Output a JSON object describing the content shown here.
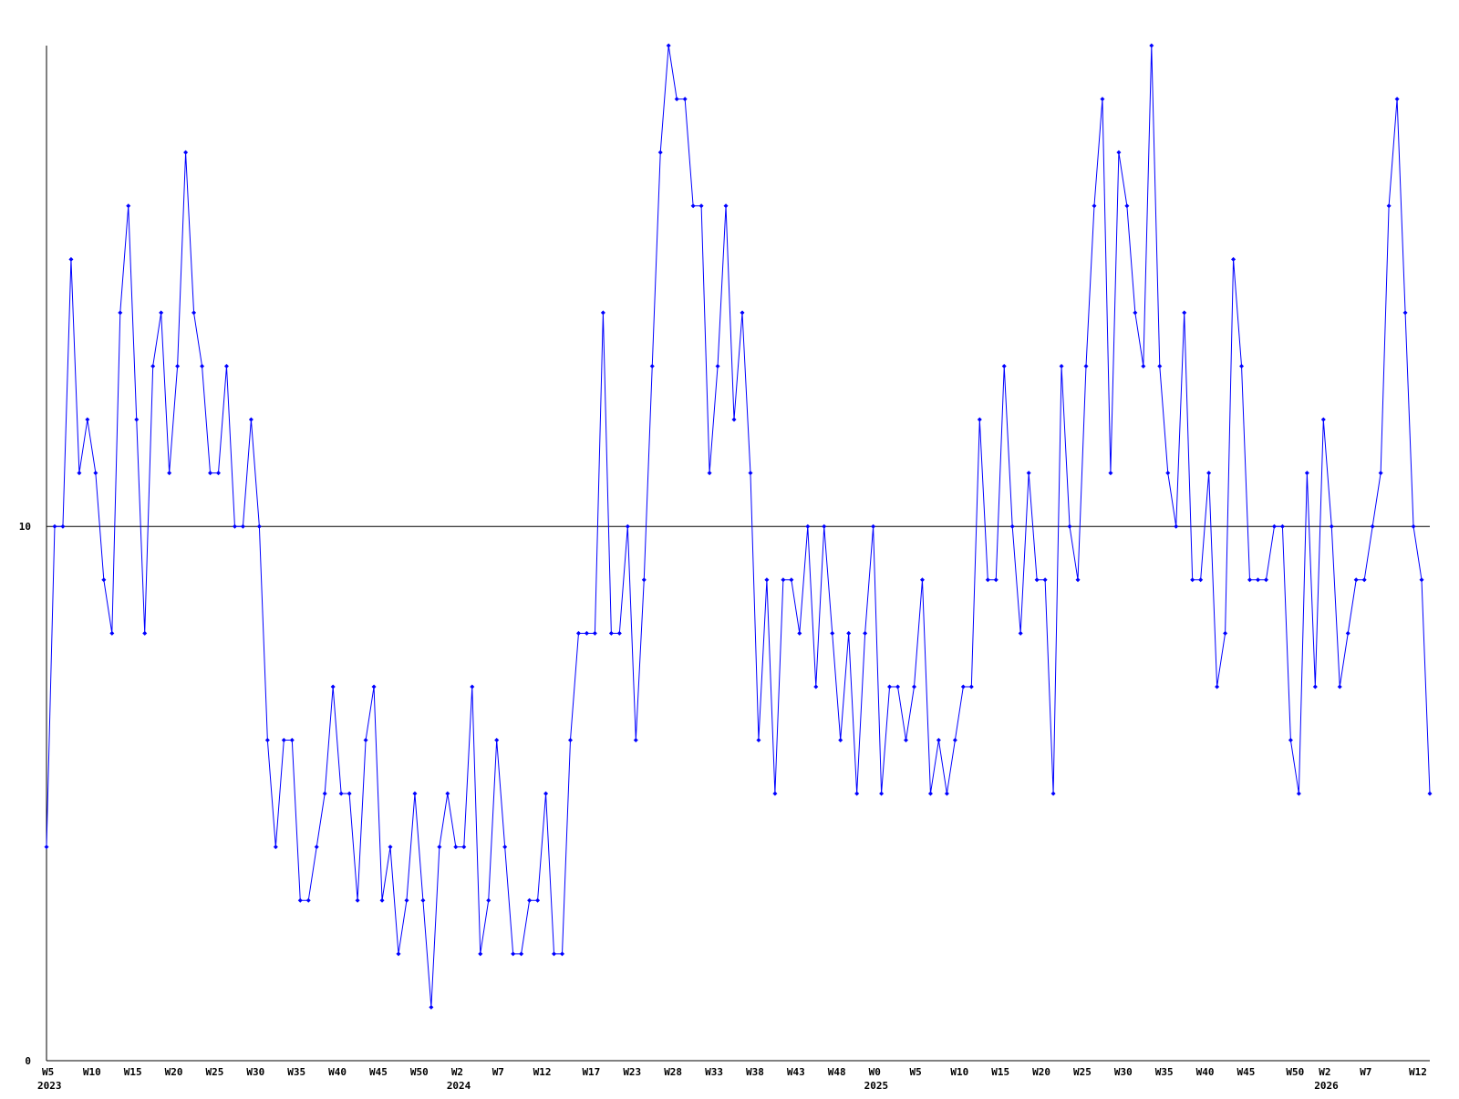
{
  "chart_data": {
    "type": "line",
    "series": [
      {
        "color": "#0000ff",
        "values": [
          4,
          10,
          10,
          15,
          11,
          12,
          11,
          9,
          8,
          14,
          16,
          12,
          8,
          13,
          14,
          11,
          13,
          17,
          14,
          13,
          11,
          11,
          13,
          10,
          10,
          12,
          10,
          6,
          4,
          6,
          6,
          3,
          3,
          4,
          5,
          7,
          5,
          5,
          3,
          6,
          7,
          3,
          4,
          2,
          3,
          5,
          3,
          1,
          4,
          5,
          4,
          4,
          7,
          2,
          3,
          6,
          4,
          2,
          2,
          3,
          3,
          5,
          2,
          2,
          6,
          8,
          8,
          8,
          14,
          8,
          8,
          10,
          6,
          9,
          13,
          17,
          19,
          18,
          18,
          16,
          16,
          11,
          13,
          16,
          12,
          14,
          11,
          6,
          9,
          5,
          9,
          9,
          8,
          10,
          7,
          10,
          8,
          6,
          8,
          5,
          8,
          10,
          5,
          7,
          7,
          6,
          7,
          9,
          5,
          6,
          5,
          6,
          7,
          7,
          12,
          9,
          9,
          13,
          10,
          8,
          11,
          9,
          9,
          5,
          13,
          10,
          9,
          13,
          16,
          18,
          11,
          17,
          16,
          14,
          13,
          19,
          13,
          11,
          10,
          14,
          9,
          9,
          11,
          7,
          8,
          15,
          13,
          9,
          9,
          9,
          10,
          10,
          6,
          5,
          11,
          7,
          12,
          10,
          7,
          8,
          9,
          9,
          10,
          11,
          16,
          18,
          14,
          10,
          9,
          5
        ]
      }
    ],
    "ylim": [
      0,
      19
    ],
    "yticks": [
      0,
      10
    ],
    "xticks": [
      {
        "value": 0,
        "label": "W5"
      },
      {
        "value": 5,
        "label": "W10"
      },
      {
        "value": 10,
        "label": "W15"
      },
      {
        "value": 15,
        "label": "W20"
      },
      {
        "value": 20,
        "label": "W25"
      },
      {
        "value": 25,
        "label": "W30"
      },
      {
        "value": 30,
        "label": "W35"
      },
      {
        "value": 35,
        "label": "W40"
      },
      {
        "value": 40,
        "label": "W45"
      },
      {
        "value": 45,
        "label": "W50"
      },
      {
        "value": 50,
        "label": "W2"
      },
      {
        "value": 55,
        "label": "W7"
      },
      {
        "value": 60,
        "label": "W12"
      },
      {
        "value": 66,
        "label": "W17"
      },
      {
        "value": 71,
        "label": "W23"
      },
      {
        "value": 76,
        "label": "W28"
      },
      {
        "value": 81,
        "label": "W33"
      },
      {
        "value": 86,
        "label": "W38"
      },
      {
        "value": 91,
        "label": "W43"
      },
      {
        "value": 96,
        "label": "W48"
      },
      {
        "value": 101,
        "label": "W0"
      },
      {
        "value": 106,
        "label": "W5"
      },
      {
        "value": 111,
        "label": "W10"
      },
      {
        "value": 116,
        "label": "W15"
      },
      {
        "value": 121,
        "label": "W20"
      },
      {
        "value": 126,
        "label": "W25"
      },
      {
        "value": 131,
        "label": "W30"
      },
      {
        "value": 136,
        "label": "W35"
      },
      {
        "value": 141,
        "label": "W40"
      },
      {
        "value": 146,
        "label": "W45"
      },
      {
        "value": 152,
        "label": "W50"
      },
      {
        "value": 156,
        "label": "W2"
      },
      {
        "value": 161,
        "label": "W7"
      },
      {
        "value": 167,
        "label": "W12"
      }
    ],
    "year_labels": [
      {
        "value": 0,
        "label": "2023"
      },
      {
        "value": 50,
        "label": "2024"
      },
      {
        "value": 101,
        "label": "2025"
      },
      {
        "value": 156,
        "label": "2026"
      }
    ]
  }
}
